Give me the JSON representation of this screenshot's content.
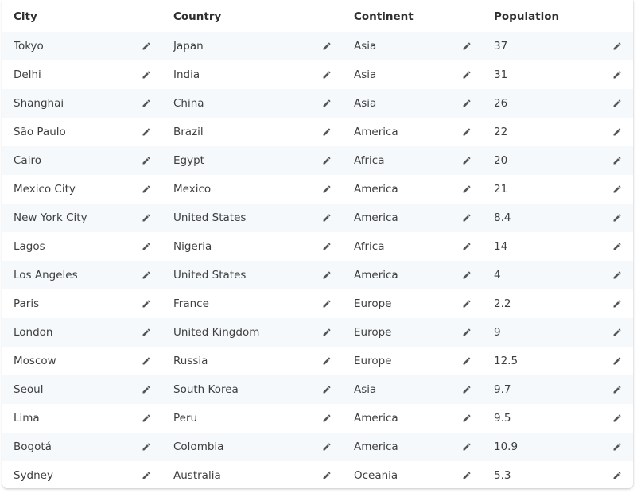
{
  "table": {
    "columns": [
      "City",
      "Country",
      "Continent",
      "Population"
    ],
    "rows": [
      [
        "Tokyo",
        "Japan",
        "Asia",
        "37"
      ],
      [
        "Delhi",
        "India",
        "Asia",
        "31"
      ],
      [
        "Shanghai",
        "China",
        "Asia",
        "26"
      ],
      [
        "São Paulo",
        "Brazil",
        "America",
        "22"
      ],
      [
        "Cairo",
        "Egypt",
        "Africa",
        "20"
      ],
      [
        "Mexico City",
        "Mexico",
        "America",
        "21"
      ],
      [
        "New York City",
        "United States",
        "America",
        "8.4"
      ],
      [
        "Lagos",
        "Nigeria",
        "Africa",
        "14"
      ],
      [
        "Los Angeles",
        "United States",
        "America",
        "4"
      ],
      [
        "Paris",
        "France",
        "Europe",
        "2.2"
      ],
      [
        "London",
        "United Kingdom",
        "Europe",
        "9"
      ],
      [
        "Moscow",
        "Russia",
        "Europe",
        "12.5"
      ],
      [
        "Seoul",
        "South Korea",
        "Asia",
        "9.7"
      ],
      [
        "Lima",
        "Peru",
        "America",
        "9.5"
      ],
      [
        "Bogotá",
        "Colombia",
        "America",
        "10.9"
      ],
      [
        "Sydney",
        "Australia",
        "Oceania",
        "5.3"
      ]
    ]
  },
  "icons": {
    "edit": "pencil-icon"
  },
  "colors": {
    "row_stripe": "#f5f9fb",
    "icon": "#555555"
  }
}
